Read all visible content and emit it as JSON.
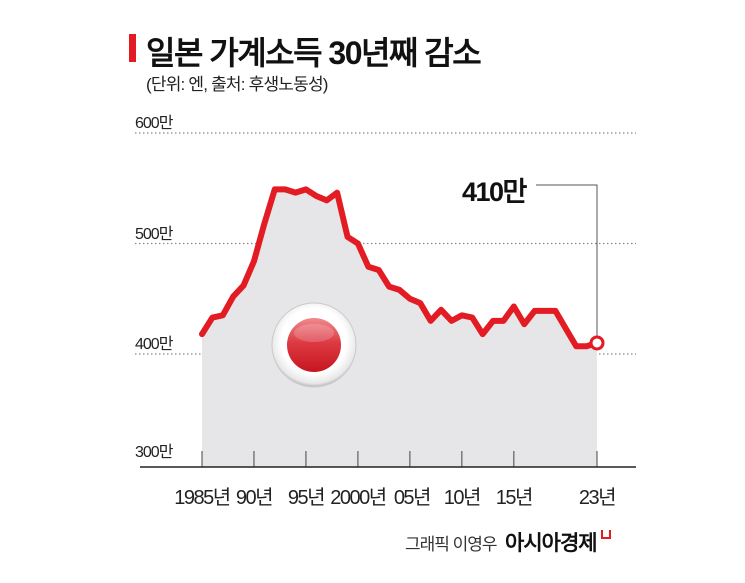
{
  "header": {
    "title": "일본 가계소득 30년째 감소",
    "subtitle": "(단위: 엔, 출처: 후생노동성)"
  },
  "y_axis": {
    "labels": [
      {
        "text": "600만",
        "value": 600
      },
      {
        "text": "500만",
        "value": 500
      },
      {
        "text": "400만",
        "value": 400
      },
      {
        "text": "300만",
        "value": 300
      }
    ]
  },
  "x_axis": {
    "labels": [
      {
        "text": "1985년",
        "year": 1985
      },
      {
        "text": "90년",
        "year": 1990
      },
      {
        "text": "95년",
        "year": 1995
      },
      {
        "text": "2000년",
        "year": 2000
      },
      {
        "text": "05년",
        "year": 2005
      },
      {
        "text": "10년",
        "year": 2010
      },
      {
        "text": "15년",
        "year": 2015
      },
      {
        "text": "23년",
        "year": 2023
      }
    ]
  },
  "callout": {
    "text": "410만",
    "year": 2023
  },
  "footer": {
    "credit": "그래픽 이영우",
    "brand": "아시아경제"
  },
  "colors": {
    "line": "#e31b23",
    "area": "#e6e6e8",
    "grid": "#8a8a8a",
    "title_bar": "#e31b23"
  },
  "chart_data": {
    "type": "area",
    "title": "일본 가계소득 30년째 감소",
    "subtitle": "(단위: 엔, 출처: 후생노동성)",
    "xlabel": "",
    "ylabel": "엔",
    "unit": "만 엔",
    "ylim": [
      300,
      600
    ],
    "yticks": [
      "300만",
      "400만",
      "500만",
      "600만"
    ],
    "xticks": [
      "1985년",
      "90년",
      "95년",
      "2000년",
      "05년",
      "10년",
      "15년",
      "23년"
    ],
    "grid": "horizontal dotted",
    "annotation": {
      "text": "410만",
      "x": 2023,
      "y": 410
    },
    "x": [
      1985,
      1986,
      1987,
      1988,
      1989,
      1990,
      1991,
      1992,
      1993,
      1994,
      1995,
      1996,
      1997,
      1998,
      1999,
      2000,
      2001,
      2002,
      2003,
      2004,
      2005,
      2006,
      2007,
      2008,
      2009,
      2010,
      2011,
      2012,
      2013,
      2014,
      2015,
      2016,
      2017,
      2018,
      2019,
      2020,
      2021,
      2022,
      2023
    ],
    "series": [
      {
        "name": "가계소득",
        "values": [
          418,
          433,
          435,
          452,
          462,
          484,
          518,
          549,
          549,
          546,
          549,
          543,
          539,
          546,
          506,
          500,
          479,
          476,
          461,
          458,
          450,
          446,
          430,
          440,
          430,
          435,
          433,
          418,
          430,
          430,
          443,
          427,
          439,
          439,
          439,
          423,
          407,
          407,
          410
        ]
      }
    ]
  }
}
